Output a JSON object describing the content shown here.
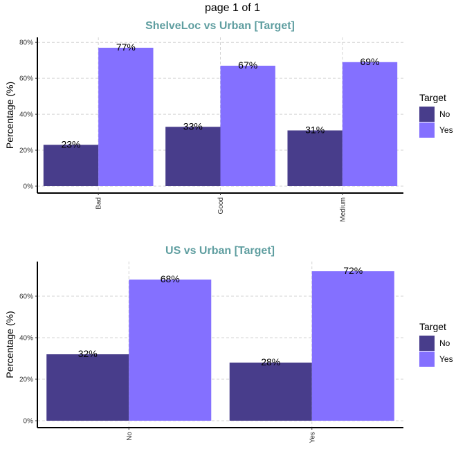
{
  "page": {
    "title": "page 1 of 1"
  },
  "colors": {
    "No": "#483d8b",
    "Yes": "#8470ff",
    "title": "#5f9ea0",
    "grid": "#d3d3d3",
    "axis": "#000000"
  },
  "chart_data": [
    {
      "type": "bar",
      "title": "ShelveLoc vs Urban [Target]",
      "xlabel": "",
      "ylabel": "Percentage (%)",
      "categories": [
        "Bad",
        "Good",
        "Medium"
      ],
      "series": [
        {
          "name": "No",
          "values": [
            23,
            33,
            31
          ]
        },
        {
          "name": "Yes",
          "values": [
            77,
            67,
            69
          ]
        }
      ],
      "data_labels": [
        [
          "23%",
          "33%",
          "31%"
        ],
        [
          "77%",
          "67%",
          "69%"
        ]
      ],
      "ylim": [
        0,
        82
      ],
      "yticks": [
        0,
        20,
        40,
        60,
        80
      ],
      "ytick_labels": [
        "0%",
        "20%",
        "40%",
        "60%",
        "80%"
      ],
      "legend": {
        "title": "Target",
        "position": "right"
      },
      "grid": true
    },
    {
      "type": "bar",
      "title": "US vs Urban [Target]",
      "xlabel": "",
      "ylabel": "Percentage (%)",
      "categories": [
        "No",
        "Yes"
      ],
      "series": [
        {
          "name": "No",
          "values": [
            32,
            28
          ]
        },
        {
          "name": "Yes",
          "values": [
            68,
            72
          ]
        }
      ],
      "data_labels": [
        [
          "32%",
          "28%"
        ],
        [
          "68%",
          "72%"
        ]
      ],
      "ylim": [
        0,
        76
      ],
      "yticks": [
        0,
        20,
        40,
        60
      ],
      "ytick_labels": [
        "0%",
        "20%",
        "40%",
        "60%"
      ],
      "legend": {
        "title": "Target",
        "position": "right"
      },
      "grid": true
    }
  ]
}
